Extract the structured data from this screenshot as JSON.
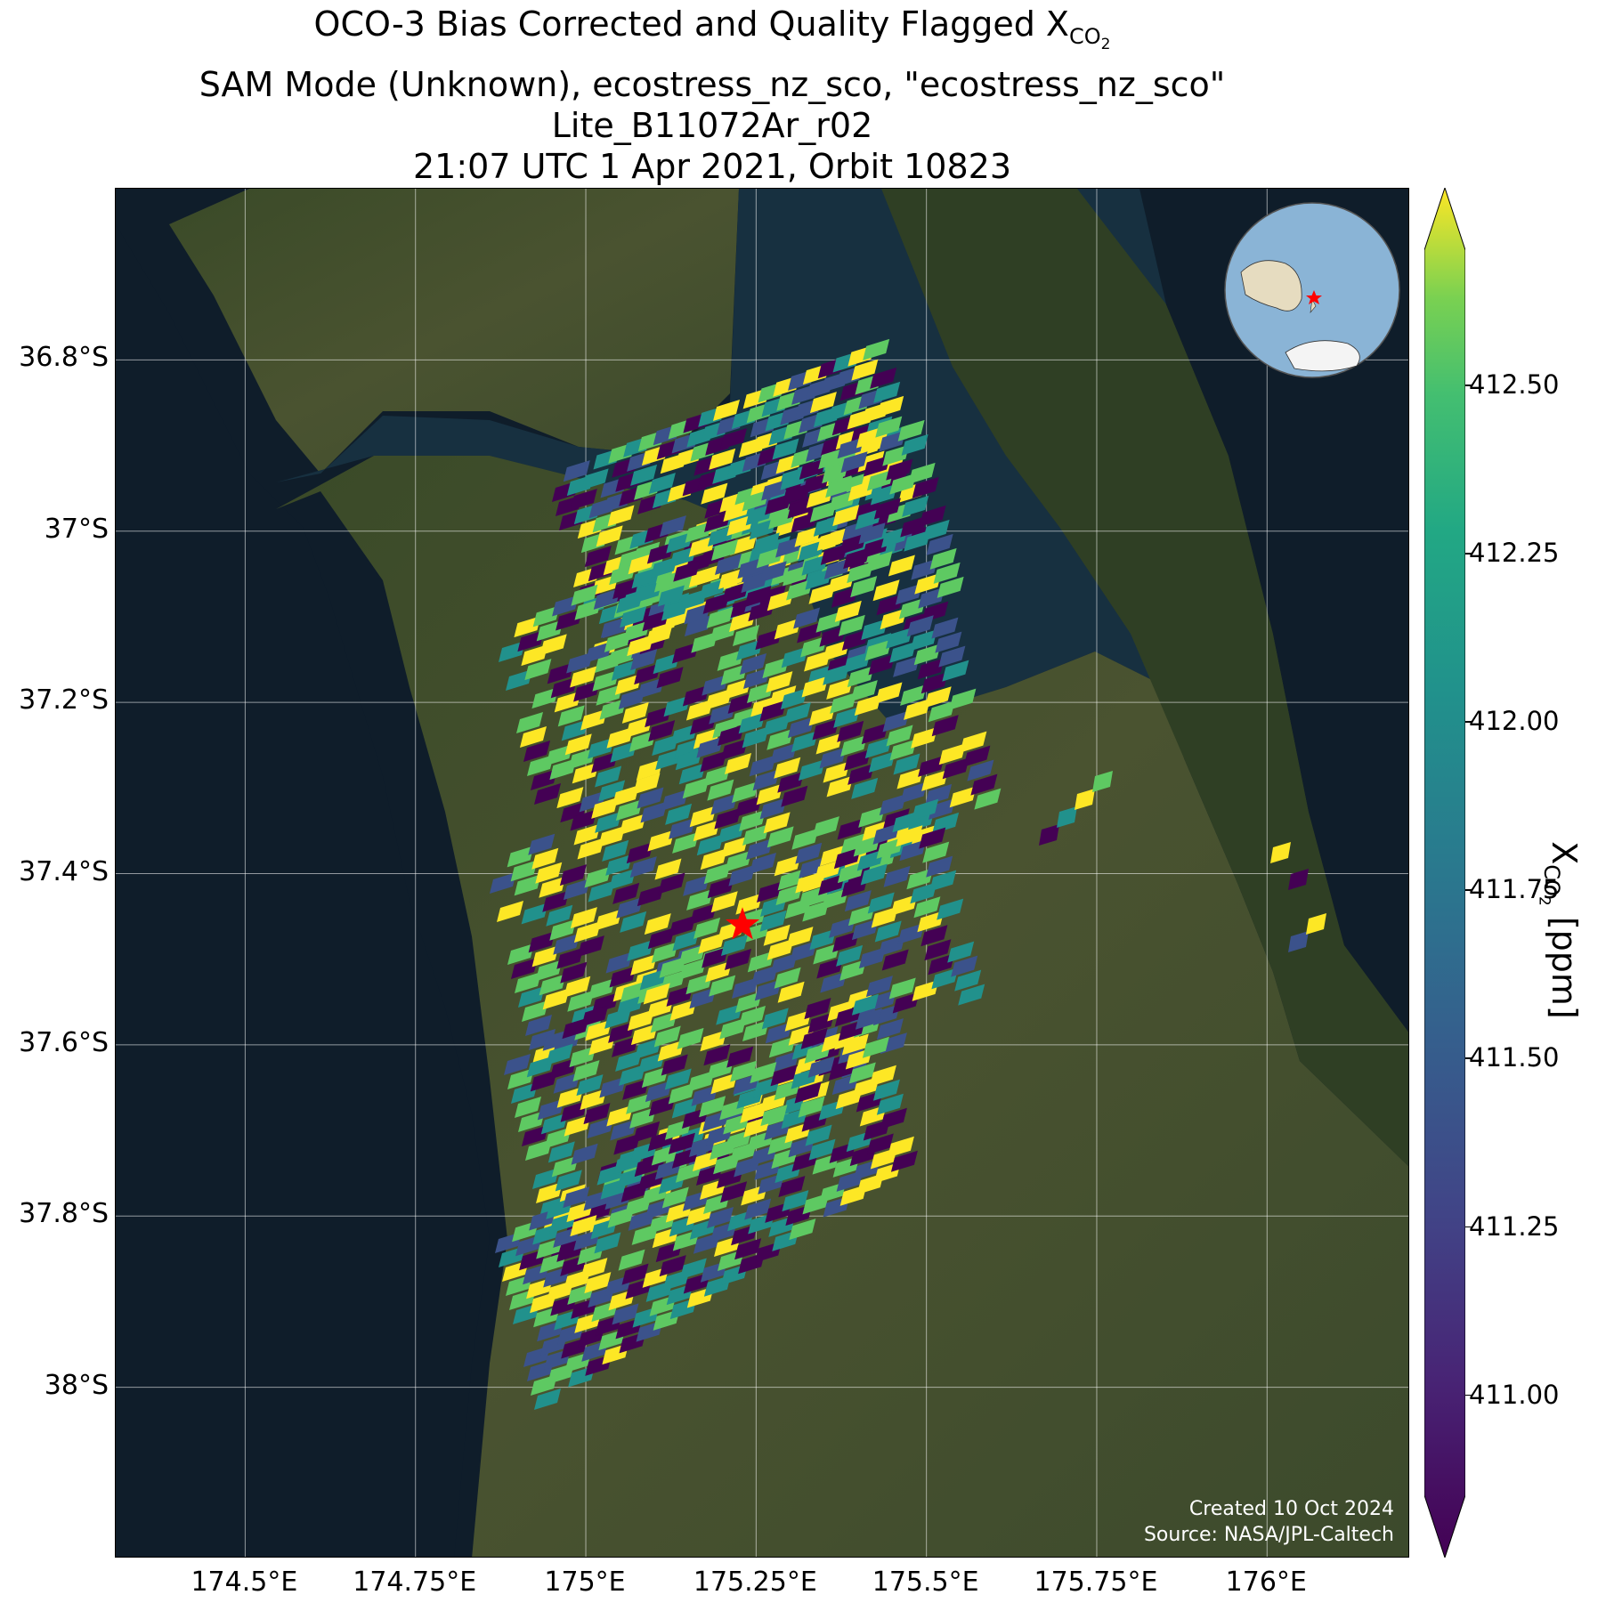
{
  "title": {
    "line1_prefix": "OCO-3 Bias Corrected and Quality Flagged X",
    "line1_sub": "CO",
    "line1_subsub": "2",
    "line2": "SAM Mode (Unknown), ecostress_nz_sco, \"ecostress_nz_sco\"",
    "line3": "Lite_B11072Ar_r02",
    "line4": "21:07 UTC 1 Apr 2021, Orbit 10823"
  },
  "map": {
    "lat_ticks": [
      "36.8°S",
      "37°S",
      "37.2°S",
      "37.4°S",
      "37.6°S",
      "37.8°S",
      "38°S"
    ],
    "lon_ticks": [
      "174.5°E",
      "174.75°E",
      "175°E",
      "175.25°E",
      "175.5°E",
      "175.75°E",
      "176°E"
    ],
    "lat_values": [
      -36.8,
      -37.0,
      -37.2,
      -37.4,
      -37.6,
      -37.8,
      -38.0
    ],
    "lon_values": [
      174.5,
      174.75,
      175.0,
      175.25,
      175.5,
      175.75,
      176.0
    ],
    "lat_range": [
      -38.2,
      -36.6
    ],
    "lon_range": [
      174.31,
      176.21
    ],
    "basemap": "satellite imagery",
    "gridlines": true,
    "target_marker": {
      "lon": 175.23,
      "lat": -37.46,
      "symbol": "red-star"
    }
  },
  "colorbar": {
    "label_prefix": "X",
    "label_sub": "CO",
    "label_subsub": "2",
    "label_suffix": " [ppm]",
    "ticks": [
      "411.00",
      "411.25",
      "411.50",
      "411.75",
      "412.00",
      "412.25",
      "412.50"
    ],
    "tick_values": [
      411.0,
      411.25,
      411.5,
      411.75,
      412.0,
      412.25,
      412.5
    ],
    "range": [
      410.85,
      412.7
    ],
    "colormap": "viridis",
    "extend": "both"
  },
  "credit": {
    "line1": "Created 10 Oct 2024",
    "line2": "Source: NASA/JPL-Caltech"
  },
  "inset_globe": {
    "marker": "red-star"
  },
  "colors": {
    "ocean": "#0f1d2a",
    "land": "#3d4a2a",
    "marker": "#ff0000",
    "viridis": [
      "#440154",
      "#3b528b",
      "#21918c",
      "#5ec962",
      "#fde725"
    ]
  }
}
